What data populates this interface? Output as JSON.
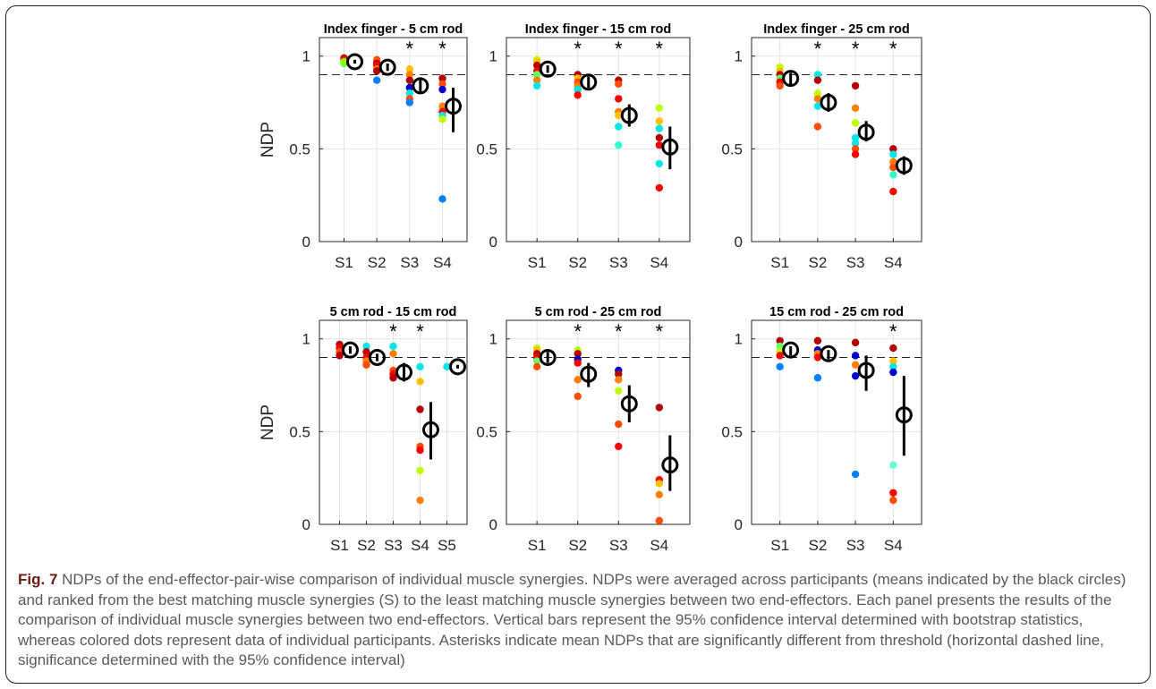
{
  "figure": {
    "caption_label": "Fig. 7",
    "caption_text": "NDPs of the end-effector-pair-wise comparison of individual muscle synergies. NDPs were averaged across participants (means indicated by the black circles) and ranked from the best matching muscle synergies (S) to the least matching muscle synergies between two end-effectors. Each panel presents the results of the comparison of individual muscle synergies between two end-effectors. Vertical bars represent the 95% confidence interval determined with bootstrap statistics, whereas colored dots represent data of individual participants. Asterisks indicate mean NDPs that are significantly different from threshold (horizontal dashed line, significance determined with the 95% confidence interval)"
  },
  "chart_data": [
    {
      "type": "scatter",
      "title": "Index finger - 5 cm rod",
      "ylabel": "NDP",
      "xlabel": "",
      "ylim": [
        0,
        1.1
      ],
      "yticks": [
        0,
        0.5,
        1
      ],
      "ytick_labels": [
        "0",
        "0.5",
        "1"
      ],
      "threshold": 0.9,
      "grid": true,
      "categories": [
        "S1",
        "S2",
        "S3",
        "S4"
      ],
      "means": [
        0.97,
        0.94,
        0.84,
        0.73
      ],
      "ci": [
        [
          0.96,
          0.98
        ],
        [
          0.92,
          0.96
        ],
        [
          0.8,
          0.88
        ],
        [
          0.59,
          0.83
        ]
      ],
      "significant": [
        false,
        false,
        true,
        true
      ],
      "points": [
        [
          [
            0.99,
            "#b30000"
          ],
          [
            0.98,
            "#ff4d00"
          ],
          [
            0.97,
            "#00e6e6"
          ],
          [
            0.96,
            "#66ff66"
          ],
          [
            0.98,
            "#ff0000"
          ],
          [
            0.97,
            "#8bff00"
          ]
        ],
        [
          [
            0.98,
            "#ff4d00"
          ],
          [
            0.96,
            "#b30000"
          ],
          [
            0.95,
            "#ff0000"
          ],
          [
            0.93,
            "#ff8000"
          ],
          [
            0.92,
            "#b30000"
          ],
          [
            0.87,
            "#0080ff"
          ]
        ],
        [
          [
            0.93,
            "#ffbf00"
          ],
          [
            0.9,
            "#ff8000"
          ],
          [
            0.87,
            "#b30000"
          ],
          [
            0.83,
            "#0000cc"
          ],
          [
            0.8,
            "#00e6e6"
          ],
          [
            0.77,
            "#ff4d00"
          ],
          [
            0.75,
            "#0080ff"
          ]
        ],
        [
          [
            0.88,
            "#b30000"
          ],
          [
            0.85,
            "#ff4d00"
          ],
          [
            0.82,
            "#0000cc"
          ],
          [
            0.73,
            "#ff8000"
          ],
          [
            0.7,
            "#ff0000"
          ],
          [
            0.68,
            "#00e6e6"
          ],
          [
            0.66,
            "#bfff00"
          ],
          [
            0.23,
            "#0080ff"
          ]
        ]
      ]
    },
    {
      "type": "scatter",
      "title": "Index finger - 15 cm rod",
      "ylabel": "",
      "xlabel": "",
      "ylim": [
        0,
        1.1
      ],
      "yticks": [
        0,
        0.5,
        1
      ],
      "ytick_labels": [
        "0",
        "0.5",
        "1"
      ],
      "threshold": 0.9,
      "grid": true,
      "categories": [
        "S1",
        "S2",
        "S3",
        "S4"
      ],
      "means": [
        0.93,
        0.86,
        0.68,
        0.51
      ],
      "ci": [
        [
          0.91,
          0.95
        ],
        [
          0.83,
          0.89
        ],
        [
          0.62,
          0.74
        ],
        [
          0.39,
          0.62
        ]
      ],
      "significant": [
        false,
        true,
        true,
        true
      ],
      "points": [
        [
          [
            0.98,
            "#bfff00"
          ],
          [
            0.97,
            "#ffbf00"
          ],
          [
            0.95,
            "#b30000"
          ],
          [
            0.92,
            "#ff0000"
          ],
          [
            0.9,
            "#66ff66"
          ],
          [
            0.87,
            "#ff8000"
          ],
          [
            0.84,
            "#00e6e6"
          ]
        ],
        [
          [
            0.9,
            "#b30000"
          ],
          [
            0.88,
            "#ffbf00"
          ],
          [
            0.86,
            "#ff4d00"
          ],
          [
            0.84,
            "#ff8000"
          ],
          [
            0.82,
            "#00e6e6"
          ],
          [
            0.79,
            "#ff0000"
          ]
        ],
        [
          [
            0.87,
            "#b30000"
          ],
          [
            0.85,
            "#ff4d00"
          ],
          [
            0.77,
            "#ff0000"
          ],
          [
            0.7,
            "#ff8000"
          ],
          [
            0.68,
            "#ffbf00"
          ],
          [
            0.62,
            "#00e6e6"
          ],
          [
            0.52,
            "#33ffcc"
          ]
        ],
        [
          [
            0.72,
            "#bfff00"
          ],
          [
            0.65,
            "#ffbf00"
          ],
          [
            0.61,
            "#00e6e6"
          ],
          [
            0.56,
            "#b30000"
          ],
          [
            0.52,
            "#ff0000"
          ],
          [
            0.42,
            "#00e6e6"
          ],
          [
            0.29,
            "#ff0000"
          ]
        ]
      ]
    },
    {
      "type": "scatter",
      "title": "Index finger - 25 cm rod",
      "ylabel": "",
      "xlabel": "",
      "ylim": [
        0,
        1.1
      ],
      "yticks": [
        0,
        0.5,
        1
      ],
      "ytick_labels": [
        "0",
        "0.5",
        "1"
      ],
      "threshold": 0.9,
      "grid": true,
      "categories": [
        "S1",
        "S2",
        "S3",
        "S4"
      ],
      "means": [
        0.88,
        0.75,
        0.59,
        0.41
      ],
      "ci": [
        [
          0.84,
          0.91
        ],
        [
          0.7,
          0.8
        ],
        [
          0.54,
          0.65
        ],
        [
          0.36,
          0.46
        ]
      ],
      "significant": [
        false,
        true,
        true,
        true
      ],
      "points": [
        [
          [
            0.94,
            "#bfff00"
          ],
          [
            0.92,
            "#ffbf00"
          ],
          [
            0.9,
            "#b30000"
          ],
          [
            0.88,
            "#66ff66"
          ],
          [
            0.86,
            "#ff0000"
          ],
          [
            0.84,
            "#ff4d00"
          ]
        ],
        [
          [
            0.9,
            "#00e6e6"
          ],
          [
            0.87,
            "#b30000"
          ],
          [
            0.8,
            "#bfff00"
          ],
          [
            0.77,
            "#ff8000"
          ],
          [
            0.73,
            "#00e6e6"
          ],
          [
            0.62,
            "#ff4d00"
          ]
        ],
        [
          [
            0.84,
            "#b30000"
          ],
          [
            0.72,
            "#ff8000"
          ],
          [
            0.64,
            "#bfff00"
          ],
          [
            0.56,
            "#00e6e6"
          ],
          [
            0.53,
            "#00e6e6"
          ],
          [
            0.5,
            "#ff4d00"
          ],
          [
            0.47,
            "#ff0000"
          ]
        ],
        [
          [
            0.5,
            "#b30000"
          ],
          [
            0.47,
            "#00e6e6"
          ],
          [
            0.43,
            "#ff8000"
          ],
          [
            0.4,
            "#ff4d00"
          ],
          [
            0.36,
            "#33ffcc"
          ],
          [
            0.27,
            "#ff0000"
          ]
        ]
      ]
    },
    {
      "type": "scatter",
      "title": "5 cm rod - 15 cm rod",
      "ylabel": "NDP",
      "xlabel": "",
      "ylim": [
        0,
        1.1
      ],
      "yticks": [
        0,
        0.5,
        1
      ],
      "ytick_labels": [
        "0",
        "0.5",
        "1"
      ],
      "threshold": 0.9,
      "grid": true,
      "categories": [
        "S1",
        "S2",
        "S3",
        "S4",
        "S5"
      ],
      "means": [
        0.94,
        0.9,
        0.82,
        0.51,
        0.85
      ],
      "ci": [
        [
          0.92,
          0.96
        ],
        [
          0.88,
          0.92
        ],
        [
          0.77,
          0.87
        ],
        [
          0.35,
          0.66
        ],
        [
          0.84,
          0.86
        ]
      ],
      "significant": [
        false,
        false,
        true,
        true,
        false
      ],
      "points": [
        [
          [
            0.97,
            "#b30000"
          ],
          [
            0.95,
            "#ff0000"
          ],
          [
            0.93,
            "#ff4d00"
          ],
          [
            0.91,
            "#b30000"
          ]
        ],
        [
          [
            0.96,
            "#00e6e6"
          ],
          [
            0.93,
            "#b30000"
          ],
          [
            0.9,
            "#ff0000"
          ],
          [
            0.88,
            "#ff8000"
          ],
          [
            0.86,
            "#ff4d00"
          ]
        ],
        [
          [
            0.96,
            "#00e6e6"
          ],
          [
            0.92,
            "#ff8000"
          ],
          [
            0.83,
            "#ff4d00"
          ],
          [
            0.81,
            "#ff0000"
          ],
          [
            0.79,
            "#b30000"
          ]
        ],
        [
          [
            0.85,
            "#00e6e6"
          ],
          [
            0.77,
            "#ffbf00"
          ],
          [
            0.62,
            "#b30000"
          ],
          [
            0.42,
            "#ff4d00"
          ],
          [
            0.4,
            "#ff0000"
          ],
          [
            0.29,
            "#bfff00"
          ],
          [
            0.13,
            "#ff8000"
          ]
        ],
        [
          [
            0.85,
            "#00e6e6"
          ]
        ]
      ]
    },
    {
      "type": "scatter",
      "title": "5 cm rod - 25 cm rod",
      "ylabel": "",
      "xlabel": "",
      "ylim": [
        0,
        1.1
      ],
      "yticks": [
        0,
        0.5,
        1
      ],
      "ytick_labels": [
        "0",
        "0.5",
        "1"
      ],
      "threshold": 0.9,
      "grid": true,
      "categories": [
        "S1",
        "S2",
        "S3",
        "S4"
      ],
      "means": [
        0.9,
        0.81,
        0.65,
        0.32
      ],
      "ci": [
        [
          0.87,
          0.93
        ],
        [
          0.74,
          0.87
        ],
        [
          0.55,
          0.75
        ],
        [
          0.18,
          0.48
        ]
      ],
      "significant": [
        false,
        true,
        true,
        true
      ],
      "points": [
        [
          [
            0.95,
            "#bfff00"
          ],
          [
            0.94,
            "#ffbf00"
          ],
          [
            0.92,
            "#b30000"
          ],
          [
            0.9,
            "#ff0000"
          ],
          [
            0.88,
            "#66ff66"
          ],
          [
            0.85,
            "#ff4d00"
          ]
        ],
        [
          [
            0.94,
            "#bfff00"
          ],
          [
            0.92,
            "#b30000"
          ],
          [
            0.89,
            "#0000cc"
          ],
          [
            0.87,
            "#ff0000"
          ],
          [
            0.78,
            "#ff8000"
          ],
          [
            0.69,
            "#ff4d00"
          ]
        ],
        [
          [
            0.83,
            "#0000cc"
          ],
          [
            0.81,
            "#b30000"
          ],
          [
            0.78,
            "#ff8000"
          ],
          [
            0.72,
            "#bfff00"
          ],
          [
            0.54,
            "#ff4d00"
          ],
          [
            0.42,
            "#ff0000"
          ]
        ],
        [
          [
            0.63,
            "#b30000"
          ],
          [
            0.24,
            "#ff0000"
          ],
          [
            0.22,
            "#ffbf00"
          ],
          [
            0.16,
            "#ff8000"
          ],
          [
            0.02,
            "#ff4d00"
          ]
        ]
      ]
    },
    {
      "type": "scatter",
      "title": "15 cm rod - 25 cm rod",
      "ylabel": "",
      "xlabel": "",
      "ylim": [
        0,
        1.1
      ],
      "yticks": [
        0,
        0.5,
        1
      ],
      "ytick_labels": [
        "0",
        "0.5",
        "1"
      ],
      "threshold": 0.9,
      "grid": true,
      "categories": [
        "S1",
        "S2",
        "S3",
        "S4"
      ],
      "means": [
        0.94,
        0.92,
        0.83,
        0.59
      ],
      "ci": [
        [
          0.91,
          0.96
        ],
        [
          0.89,
          0.94
        ],
        [
          0.72,
          0.91
        ],
        [
          0.37,
          0.8
        ]
      ],
      "significant": [
        false,
        false,
        false,
        true
      ],
      "points": [
        [
          [
            0.99,
            "#b30000"
          ],
          [
            0.96,
            "#66ff66"
          ],
          [
            0.93,
            "#bfff00"
          ],
          [
            0.91,
            "#ff0000"
          ],
          [
            0.85,
            "#0080ff"
          ]
        ],
        [
          [
            0.99,
            "#b30000"
          ],
          [
            0.94,
            "#0000cc"
          ],
          [
            0.92,
            "#ff8000"
          ],
          [
            0.9,
            "#ff0000"
          ],
          [
            0.79,
            "#0080ff"
          ]
        ],
        [
          [
            0.98,
            "#b30000"
          ],
          [
            0.91,
            "#0000cc"
          ],
          [
            0.86,
            "#ff8000"
          ],
          [
            0.8,
            "#0000cc"
          ],
          [
            0.27,
            "#0080ff"
          ]
        ],
        [
          [
            0.95,
            "#b30000"
          ],
          [
            0.88,
            "#ffbf00"
          ],
          [
            0.85,
            "#00e6e6"
          ],
          [
            0.82,
            "#0000cc"
          ],
          [
            0.32,
            "#66ffcc"
          ],
          [
            0.17,
            "#ff0000"
          ],
          [
            0.13,
            "#ff4d00"
          ]
        ]
      ]
    }
  ]
}
